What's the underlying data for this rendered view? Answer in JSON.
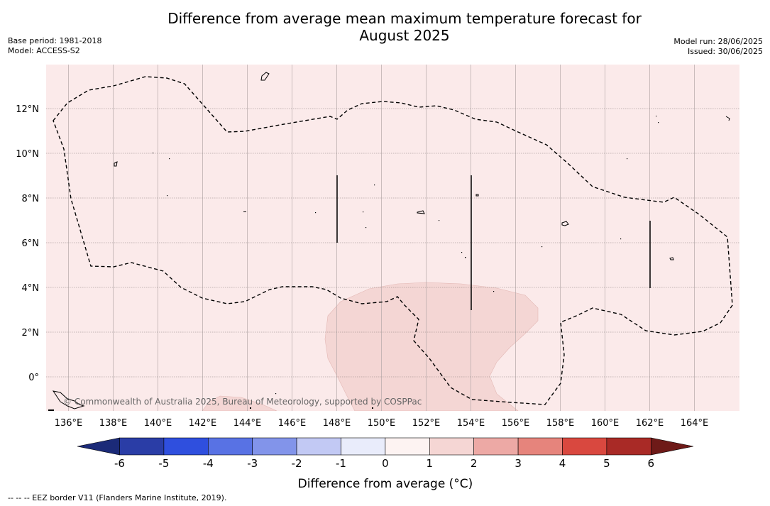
{
  "title_line1": "Difference from average mean maximum temperature forecast for",
  "title_line2": "August 2025",
  "base_period": "Base period: 1981-2018",
  "model": "Model: ACCESS-S2",
  "model_run": "Model run: 28/06/2025",
  "issued": "Issued: 30/06/2025",
  "copyright": "© Commonwealth of Australia 2025, Bureau of Meteorology, supported by COSPPac",
  "footnote": "--  --  -- EEZ border V11 (Flanders Marine Institute, 2019).",
  "map": {
    "lon_range": [
      135,
      166
    ],
    "lat_range": [
      -1.5,
      14
    ],
    "lon_ticks": [
      "136°E",
      "138°E",
      "140°E",
      "142°E",
      "144°E",
      "146°E",
      "148°E",
      "150°E",
      "152°E",
      "154°E",
      "156°E",
      "158°E",
      "160°E",
      "162°E",
      "164°E"
    ],
    "lat_ticks": [
      "0°",
      "2°N",
      "4°N",
      "6°N",
      "8°N",
      "10°N",
      "12°N"
    ],
    "background_category": "0 to 1 °C warmer",
    "anomaly_region_category": "1 to 2 °C warmer",
    "colors": {
      "bg": "#fbeaea",
      "anomaly": "#f4d6d4"
    }
  },
  "colorbar": {
    "label": "Difference from average (°C)",
    "ticks": [
      "-6",
      "-5",
      "-4",
      "-3",
      "-2",
      "-1",
      "0",
      "1",
      "2",
      "3",
      "4",
      "5",
      "6"
    ],
    "colors": [
      "#2a3da6",
      "#2f4fde",
      "#5872e4",
      "#8294ea",
      "#c2c9f4",
      "#e9ecfb",
      "#fdf3f2",
      "#f5d6d4",
      "#eda9a5",
      "#e6847c",
      "#d9483f",
      "#a92a26"
    ],
    "under_color": "#1b2a78",
    "over_color": "#6e1a18"
  }
}
